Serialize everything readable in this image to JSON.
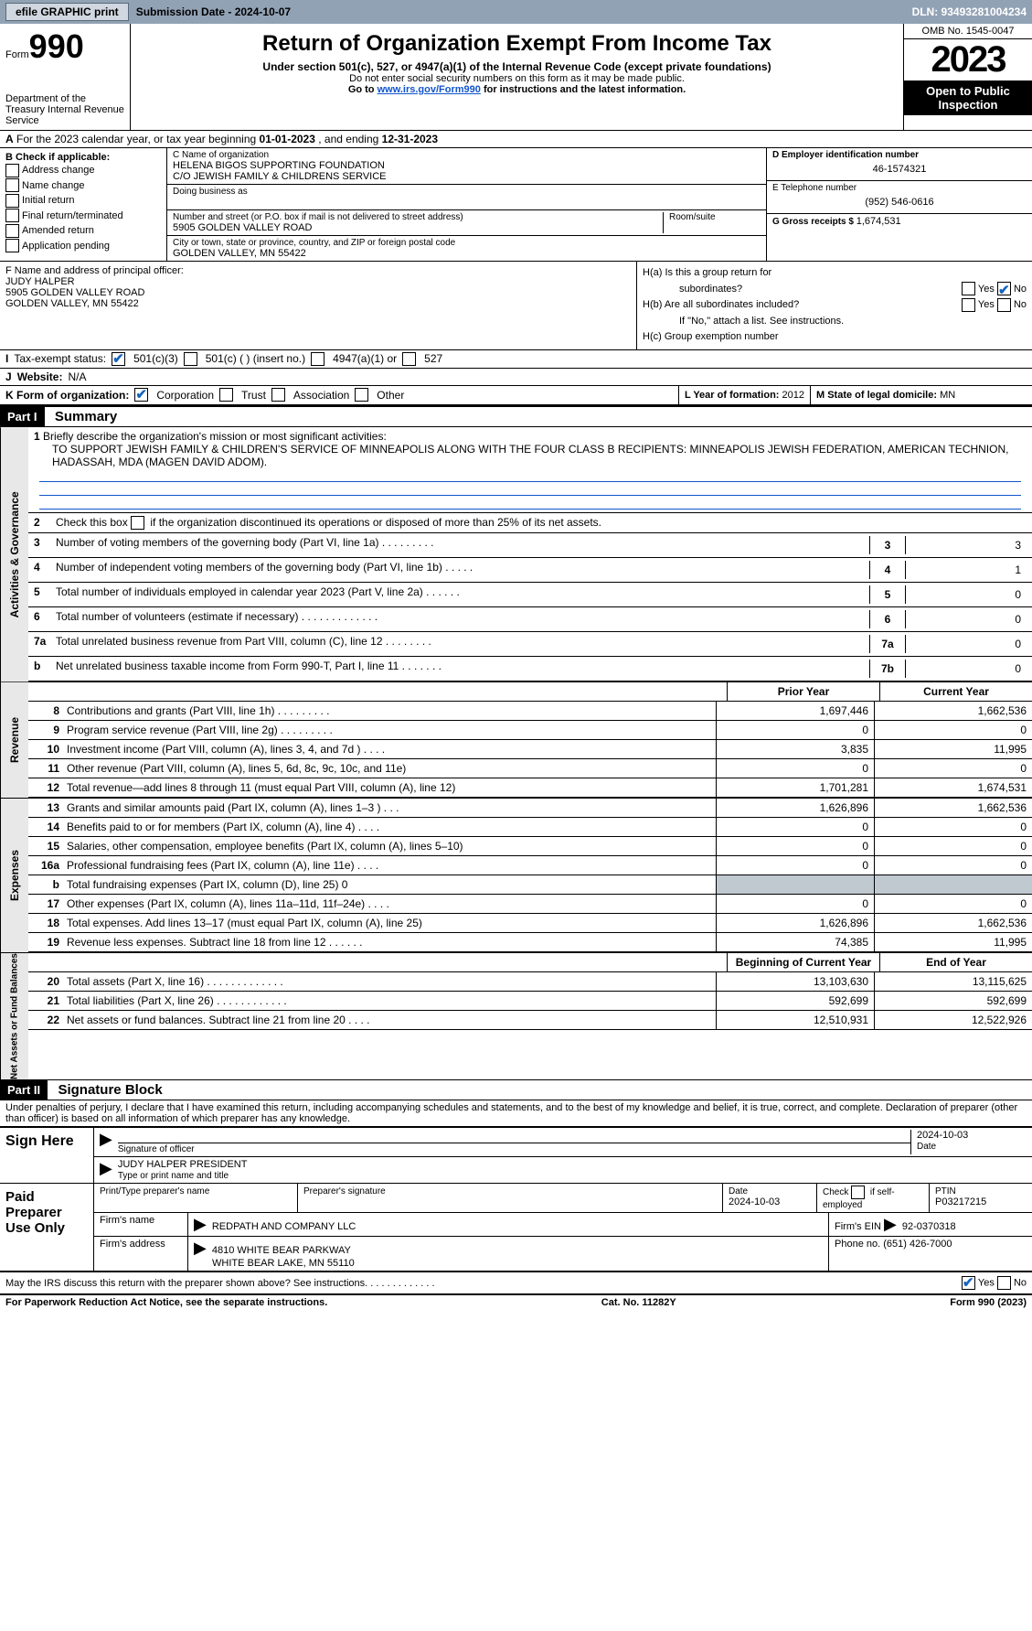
{
  "topbar": {
    "efile_btn": "efile GRAPHIC print",
    "submission": "Submission Date - 2024-10-07",
    "dln": "DLN: 93493281004234"
  },
  "header": {
    "form_word": "Form",
    "form_num": "990",
    "title": "Return of Organization Exempt From Income Tax",
    "subtitle": "Under section 501(c), 527, or 4947(a)(1) of the Internal Revenue Code (except private foundations)",
    "note1": "Do not enter social security numbers on this form as it may be made public.",
    "note2_pre": "Go to ",
    "note2_link": "www.irs.gov/Form990",
    "note2_post": " for instructions and the latest information.",
    "dept": "Department of the Treasury Internal Revenue Service",
    "omb": "OMB No. 1545-0047",
    "year": "2023",
    "inspection": "Open to Public Inspection"
  },
  "rowA": {
    "label_a": "A",
    "text": "For the 2023 calendar year, or tax year beginning ",
    "begin": "01-01-2023",
    "mid": " , and ending ",
    "end": "12-31-2023"
  },
  "colB": {
    "label": "B Check if applicable:",
    "opts": [
      "Address change",
      "Name change",
      "Initial return",
      "Final return/terminated",
      "Amended return",
      "Application pending"
    ]
  },
  "colC": {
    "name_label": "C Name of organization",
    "name": "HELENA BIGOS SUPPORTING FOUNDATION",
    "co": "C/O JEWISH FAMILY & CHILDRENS SERVICE",
    "dba_label": "Doing business as",
    "addr_label": "Number and street (or P.O. box if mail is not delivered to street address)",
    "room_label": "Room/suite",
    "addr": "5905 GOLDEN VALLEY ROAD",
    "city_label": "City or town, state or province, country, and ZIP or foreign postal code",
    "city": "GOLDEN VALLEY, MN  55422"
  },
  "colD": {
    "ein_label": "D Employer identification number",
    "ein": "46-1574321",
    "phone_label": "E Telephone number",
    "phone": "(952) 546-0616",
    "gross_label": "G Gross receipts $ ",
    "gross": "1,674,531"
  },
  "colF": {
    "label": "F  Name and address of principal officer:",
    "name": "JUDY HALPER",
    "addr1": "5905 GOLDEN VALLEY ROAD",
    "addr2": "GOLDEN VALLEY, MN  55422"
  },
  "colH": {
    "ha": "H(a)  Is this a group return for",
    "ha2": "subordinates?",
    "hb": "H(b)  Are all subordinates included?",
    "hb_note": "If \"No,\" attach a list. See instructions.",
    "hc": "H(c)  Group exemption number",
    "yes": "Yes",
    "no": "No"
  },
  "taxExempt": {
    "label": "Tax-exempt status:",
    "opt1": "501(c)(3)",
    "opt2": "501(c) (  ) (insert no.)",
    "opt3": "4947(a)(1) or",
    "opt4": "527"
  },
  "website": {
    "label": "Website:",
    "val": "N/A"
  },
  "rowK": {
    "label": "K Form of organization:",
    "opts": [
      "Corporation",
      "Trust",
      "Association",
      "Other"
    ]
  },
  "rowL": {
    "label": "L Year of formation: ",
    "val": "2012"
  },
  "rowM": {
    "label": "M State of legal domicile: ",
    "val": "MN"
  },
  "part1": {
    "header": "Part I",
    "title": "Summary",
    "line1_label": "1",
    "line1_txt": "Briefly describe the organization's mission or most significant activities:",
    "line1_mission": "TO SUPPORT JEWISH FAMILY & CHILDREN'S SERVICE OF MINNEAPOLIS ALONG WITH THE FOUR CLASS B RECIPIENTS: MINNEAPOLIS JEWISH FEDERATION, AMERICAN TECHNION, HADASSAH, MDA (MAGEN DAVID ADOM).",
    "line2_num": "2",
    "line2_txt": "Check this box      if the organization discontinued its operations or disposed of more than 25% of its net assets.",
    "lines_gov": [
      {
        "n": "3",
        "t": "Number of voting members of the governing body (Part VI, line 1a)   .    .    .    .    .    .    .    .    .",
        "bn": "3",
        "v": "3"
      },
      {
        "n": "4",
        "t": "Number of independent voting members of the governing body (Part VI, line 1b)   .    .    .    .    .",
        "bn": "4",
        "v": "1"
      },
      {
        "n": "5",
        "t": "Total number of individuals employed in calendar year 2023 (Part V, line 2a)   .    .    .    .    .    .",
        "bn": "5",
        "v": "0"
      },
      {
        "n": "6",
        "t": "Total number of volunteers (estimate if necessary)   .    .    .    .    .    .    .    .    .    .    .    .    .",
        "bn": "6",
        "v": "0"
      },
      {
        "n": "7a",
        "t": "Total unrelated business revenue from Part VIII, column (C), line 12   .    .    .    .    .    .    .    .",
        "bn": "7a",
        "v": "0"
      },
      {
        "n": "b",
        "t": "Net unrelated business taxable income from Form 990-T, Part I, line 11   .    .    .    .    .    .    .",
        "bn": "7b",
        "v": "0"
      }
    ],
    "prior": "Prior Year",
    "current": "Current Year",
    "rev_label": "Revenue",
    "rev": [
      {
        "n": "8",
        "t": "Contributions and grants (Part VIII, line 1h)   .    .    .    .    .    .    .    .    .",
        "p": "1,697,446",
        "c": "1,662,536"
      },
      {
        "n": "9",
        "t": "Program service revenue (Part VIII, line 2g)   .    .    .    .    .    .    .    .    .",
        "p": "0",
        "c": "0"
      },
      {
        "n": "10",
        "t": "Investment income (Part VIII, column (A), lines 3, 4, and 7d )   .    .    .    .",
        "p": "3,835",
        "c": "11,995"
      },
      {
        "n": "11",
        "t": "Other revenue (Part VIII, column (A), lines 5, 6d, 8c, 9c, 10c, and 11e)",
        "p": "0",
        "c": "0"
      },
      {
        "n": "12",
        "t": "Total revenue—add lines 8 through 11 (must equal Part VIII, column (A), line 12)",
        "p": "1,701,281",
        "c": "1,674,531"
      }
    ],
    "exp_label": "Expenses",
    "exp": [
      {
        "n": "13",
        "t": "Grants and similar amounts paid (Part IX, column (A), lines 1–3 )   .    .    .",
        "p": "1,626,896",
        "c": "1,662,536"
      },
      {
        "n": "14",
        "t": "Benefits paid to or for members (Part IX, column (A), line 4)   .    .    .    .",
        "p": "0",
        "c": "0"
      },
      {
        "n": "15",
        "t": "Salaries, other compensation, employee benefits (Part IX, column (A), lines 5–10)",
        "p": "0",
        "c": "0"
      },
      {
        "n": "16a",
        "t": "Professional fundraising fees (Part IX, column (A), line 11e)   .    .    .    .",
        "p": "0",
        "c": "0"
      },
      {
        "n": "b",
        "t": "Total fundraising expenses (Part IX, column (D), line 25) 0",
        "p": "",
        "c": "",
        "shade": true
      },
      {
        "n": "17",
        "t": "Other expenses (Part IX, column (A), lines 11a–11d, 11f–24e)   .    .    .    .",
        "p": "0",
        "c": "0"
      },
      {
        "n": "18",
        "t": "Total expenses. Add lines 13–17 (must equal Part IX, column (A), line 25)",
        "p": "1,626,896",
        "c": "1,662,536"
      },
      {
        "n": "19",
        "t": "Revenue less expenses. Subtract line 18 from line 12   .    .    .    .    .    .",
        "p": "74,385",
        "c": "11,995"
      }
    ],
    "net_label": "Net Assets or Fund Balances",
    "boy": "Beginning of Current Year",
    "eoy": "End of Year",
    "net": [
      {
        "n": "20",
        "t": "Total assets (Part X, line 16)   .    .    .    .    .    .    .    .    .    .    .    .    .",
        "p": "13,103,630",
        "c": "13,115,625"
      },
      {
        "n": "21",
        "t": "Total liabilities (Part X, line 26)   .    .    .    .    .    .    .    .    .    .    .    .",
        "p": "592,699",
        "c": "592,699"
      },
      {
        "n": "22",
        "t": "Net assets or fund balances. Subtract line 21 from line 20   .    .    .    .",
        "p": "12,510,931",
        "c": "12,522,926"
      }
    ],
    "gov_label": "Activities & Governance"
  },
  "part2": {
    "header": "Part II",
    "title": "Signature Block",
    "decl": "Under penalties of perjury, I declare that I have examined this return, including accompanying schedules and statements, and to the best of my knowledge and belief, it is true, correct, and complete. Declaration of preparer (other than officer) is based on all information of which preparer has any knowledge.",
    "sign_here": "Sign Here",
    "sig_officer": "Signature of officer",
    "sig_date": "2024-10-03",
    "sig_name": "JUDY HALPER  PRESIDENT",
    "sig_name_label": "Type or print name and title",
    "date_label": "Date",
    "paid": "Paid Preparer Use Only",
    "prep_name_label": "Print/Type preparer's name",
    "prep_sig_label": "Preparer's signature",
    "prep_date": "2024-10-03",
    "check_self": "Check       if self-employed",
    "ptin_label": "PTIN",
    "ptin": "P03217215",
    "firm_name_label": "Firm's name",
    "firm_name": "REDPATH AND COMPANY LLC",
    "firm_ein_label": "Firm's EIN",
    "firm_ein": "92-0370318",
    "firm_addr_label": "Firm's address",
    "firm_addr1": "4810 WHITE BEAR PARKWAY",
    "firm_addr2": "WHITE BEAR LAKE, MN  55110",
    "phone_label": "Phone no.",
    "phone": "(651) 426-7000",
    "discuss": "May the IRS discuss this return with the preparer shown above? See instructions.   .    .    .    .    .    .    .    .    .    .    .    ."
  },
  "footer": {
    "left": "For Paperwork Reduction Act Notice, see the separate instructions.",
    "mid": "Cat. No. 11282Y",
    "right": "Form 990 (2023)"
  }
}
